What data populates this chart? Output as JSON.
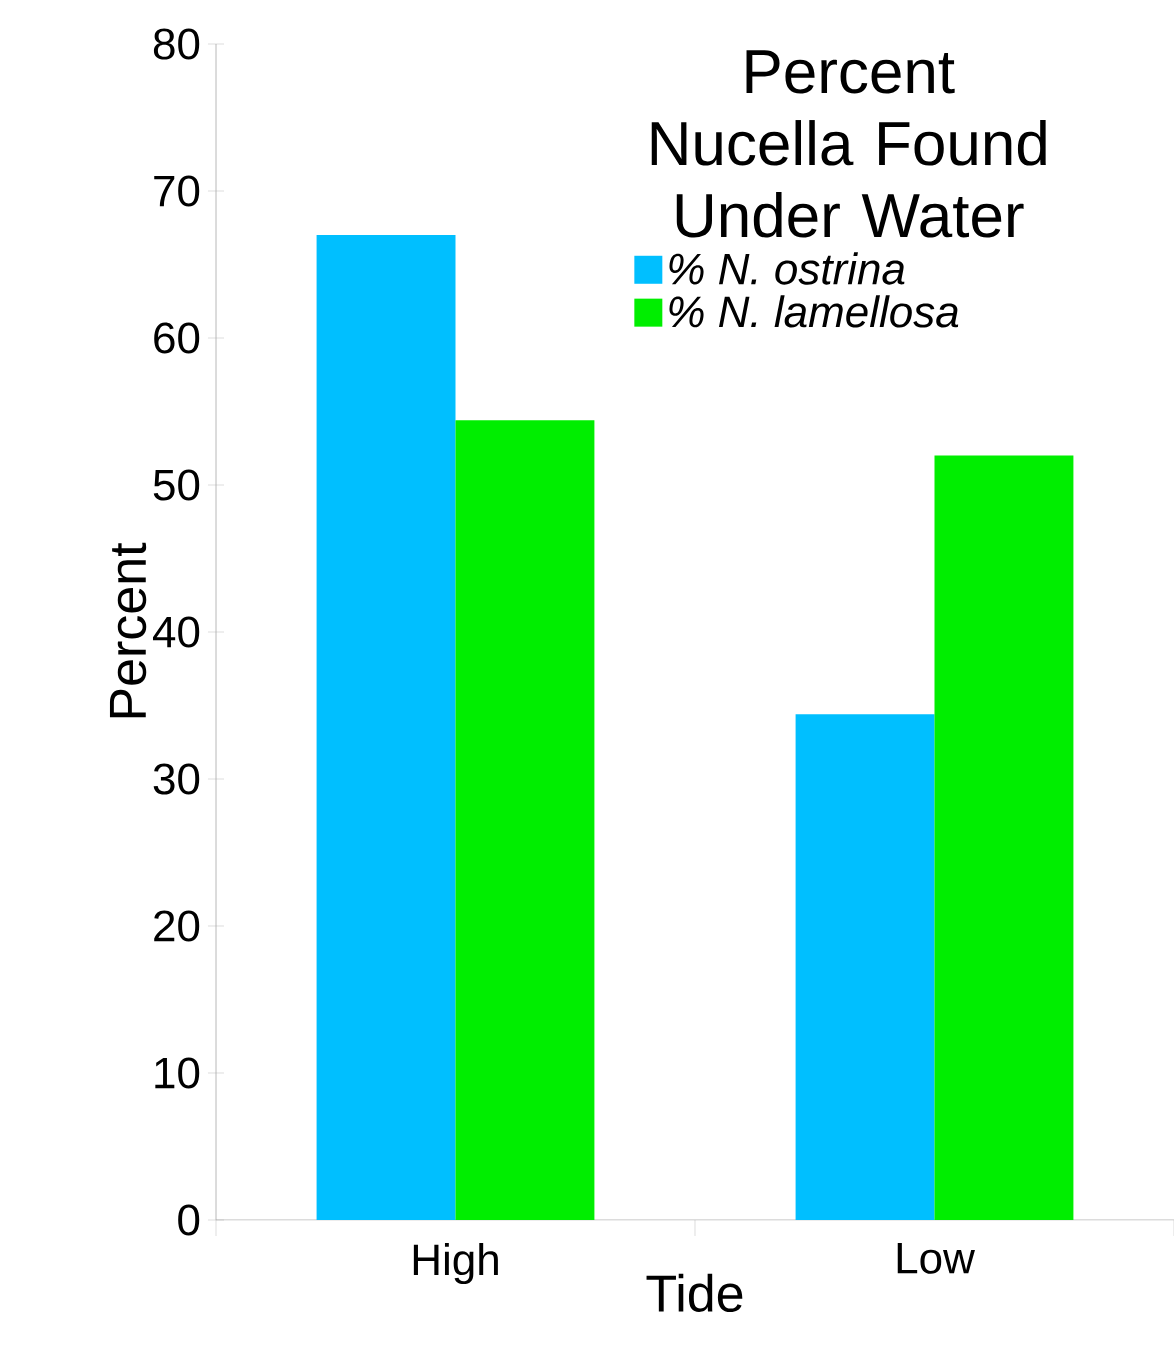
{
  "chart_data": {
    "type": "bar",
    "title": "Percent Nucella Found Under Water",
    "xlabel": "Tide",
    "ylabel": "Percent",
    "categories": [
      "High",
      "Low"
    ],
    "series": [
      {
        "name": "% N. ostrina",
        "color": "#00bfff",
        "values": [
          67,
          34.4
        ]
      },
      {
        "name": "% N. lamellosa",
        "color": "#00ee00",
        "values": [
          54.4,
          52
        ]
      }
    ],
    "ylim": [
      0,
      80
    ],
    "yticks": [
      0,
      10,
      20,
      30,
      40,
      50,
      60,
      70,
      80
    ],
    "legend": "top right",
    "grid": false
  }
}
